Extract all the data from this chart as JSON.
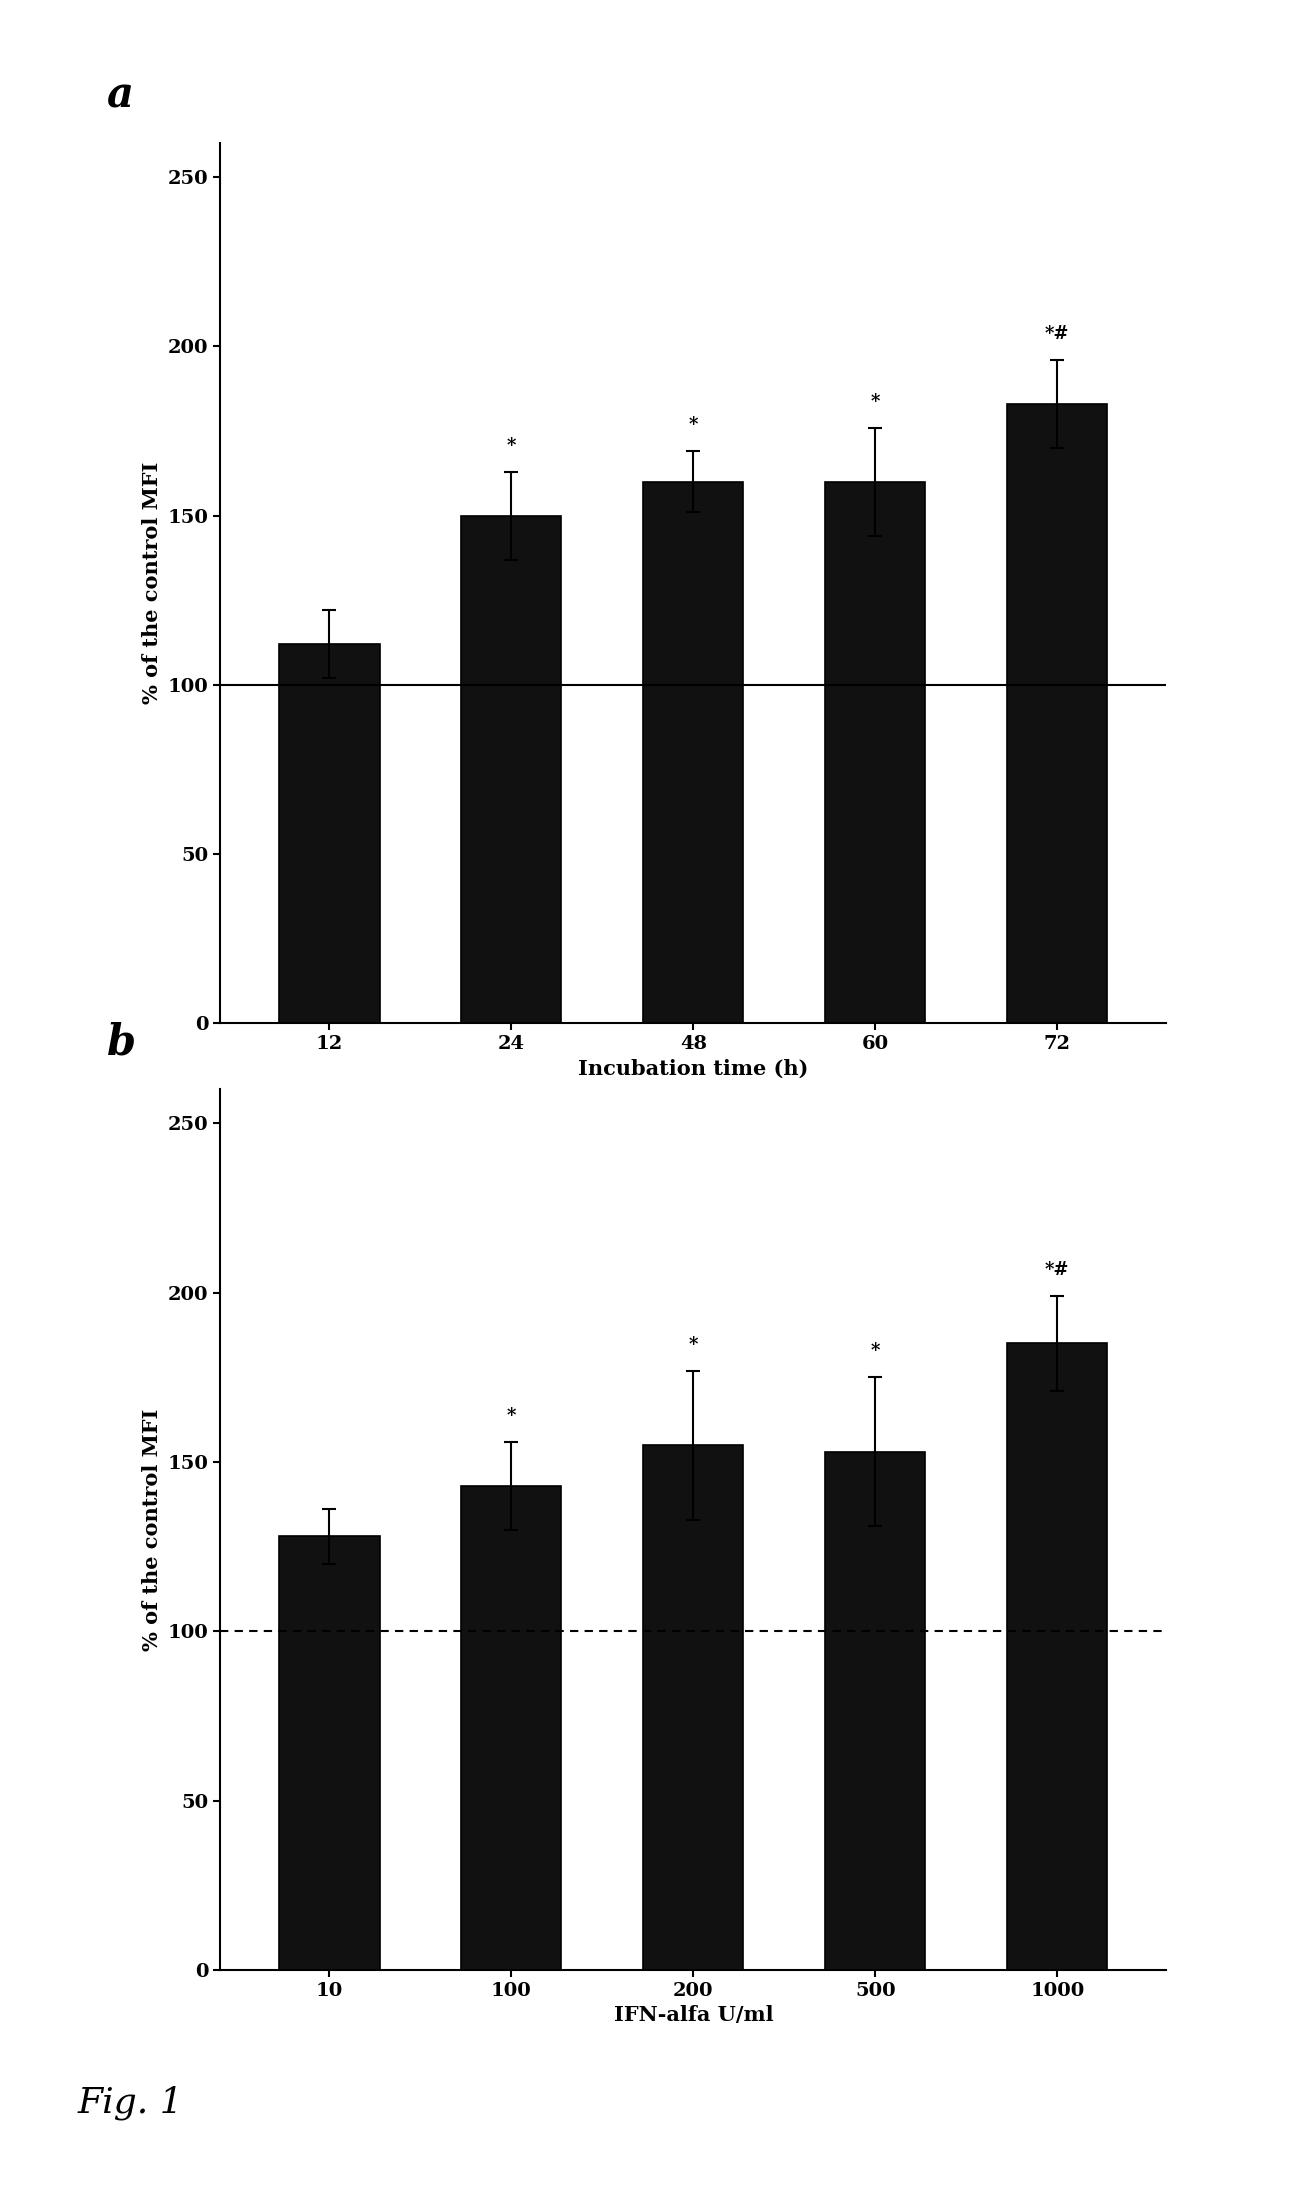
{
  "panel_a": {
    "categories": [
      "12",
      "24",
      "48",
      "60",
      "72"
    ],
    "values": [
      112,
      150,
      160,
      160,
      183
    ],
    "errors": [
      10,
      13,
      9,
      16,
      13
    ],
    "annotations": [
      "",
      "*",
      "*",
      "*",
      "*#"
    ],
    "hline_y": 100,
    "hline_style": "solid",
    "xlabel": "Incubation time (h)",
    "ylabel": "% of the control MFI",
    "ylim": [
      0,
      260
    ],
    "yticks": [
      0,
      50,
      100,
      150,
      200,
      250
    ],
    "label": "a"
  },
  "panel_b": {
    "categories": [
      "10",
      "100",
      "200",
      "500",
      "1000"
    ],
    "values": [
      128,
      143,
      155,
      153,
      185
    ],
    "errors": [
      8,
      13,
      22,
      22,
      14
    ],
    "annotations": [
      "",
      "*",
      "*",
      "*",
      "*#"
    ],
    "hline_y": 100,
    "hline_style": "dashed",
    "xlabel": "IFN-alfa U/ml",
    "ylabel": "% of the control MFI",
    "ylim": [
      0,
      260
    ],
    "yticks": [
      0,
      50,
      100,
      150,
      200,
      250
    ],
    "label": "b"
  },
  "bar_color": "#111111",
  "bar_edgecolor": "#000000",
  "bar_width": 0.55,
  "fig_label_fontsize": 30,
  "axis_label_fontsize": 15,
  "tick_fontsize": 14,
  "annotation_fontsize": 13,
  "fig_caption": "Fig. 1",
  "fig_caption_fontsize": 26,
  "background_color": "#ffffff"
}
